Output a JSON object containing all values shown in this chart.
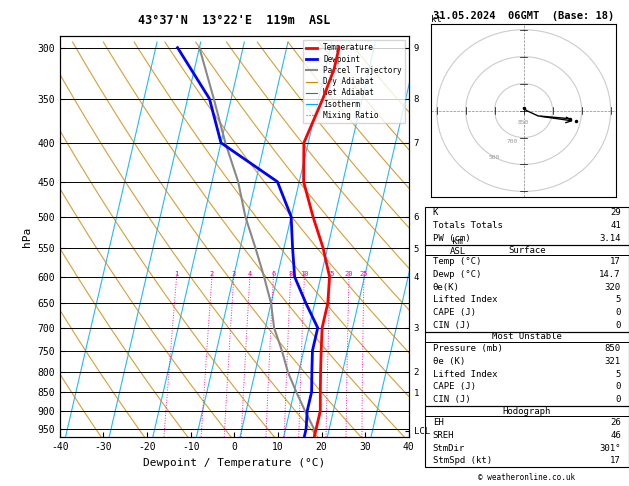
{
  "title_left": "43°37'N  13°22'E  119m  ASL",
  "title_right": "31.05.2024  06GMT  (Base: 18)",
  "xlabel": "Dewpoint / Temperature (°C)",
  "isotherm_color": "#00aaff",
  "dry_adiabat_color": "#cc8800",
  "wet_adiabat_color": "#00aa00",
  "mixing_ratio_color": "#ff00aa",
  "temp_color": "#ff0000",
  "dewp_color": "#0000ff",
  "parcel_color": "#888888",
  "temp_profile_p": [
    300,
    320,
    350,
    400,
    450,
    500,
    550,
    600,
    650,
    700,
    750,
    800,
    850,
    900,
    950,
    970
  ],
  "temp_profile_t": [
    2,
    2,
    1,
    -1,
    1,
    5,
    9,
    12,
    13,
    13,
    14,
    15,
    16,
    17,
    17,
    17
  ],
  "dewp_profile_p": [
    300,
    350,
    400,
    450,
    500,
    550,
    600,
    650,
    700,
    750,
    800,
    850,
    900,
    950,
    970
  ],
  "dewp_profile_t": [
    -35,
    -25,
    -20,
    -5,
    0,
    2,
    4,
    8,
    12,
    12,
    13,
    14,
    14,
    14.7,
    14.7
  ],
  "parcel_profile_p": [
    970,
    950,
    900,
    850,
    800,
    750,
    700,
    650,
    600,
    550,
    500,
    450,
    400,
    350,
    300
  ],
  "parcel_profile_t": [
    17,
    16.5,
    13.5,
    10.5,
    7.5,
    5,
    2,
    0,
    -3,
    -6.5,
    -10.5,
    -14,
    -19,
    -24,
    -30
  ],
  "mixing_ratio_values": [
    1,
    2,
    3,
    4,
    6,
    8,
    10,
    15,
    20,
    25
  ],
  "right_panel": {
    "credit": "© weatheronline.co.uk",
    "indices": [
      {
        "label": "K",
        "value": "29"
      },
      {
        "label": "Totals Totals",
        "value": "41"
      },
      {
        "label": "PW (cm)",
        "value": "3.14"
      }
    ],
    "surface_title": "Surface",
    "surface_items": [
      {
        "label": "Temp (°C)",
        "value": "17"
      },
      {
        "label": "Dewp (°C)",
        "value": "14.7"
      },
      {
        "label": "θe(K)",
        "value": "320"
      },
      {
        "label": "Lifted Index",
        "value": "5"
      },
      {
        "label": "CAPE (J)",
        "value": "0"
      },
      {
        "label": "CIN (J)",
        "value": "0"
      }
    ],
    "unstable_title": "Most Unstable",
    "unstable_items": [
      {
        "label": "Pressure (mb)",
        "value": "850"
      },
      {
        "label": "θe (K)",
        "value": "321"
      },
      {
        "label": "Lifted Index",
        "value": "5"
      },
      {
        "label": "CAPE (J)",
        "value": "0"
      },
      {
        "label": "CIN (J)",
        "value": "0"
      }
    ],
    "hodo_title": "Hodograph",
    "hodo_items": [
      {
        "label": "EH",
        "value": "26"
      },
      {
        "label": "SREH",
        "value": "46"
      },
      {
        "label": "StmDir",
        "value": "301°"
      },
      {
        "label": "StmSpd (kt)",
        "value": "17"
      }
    ]
  }
}
